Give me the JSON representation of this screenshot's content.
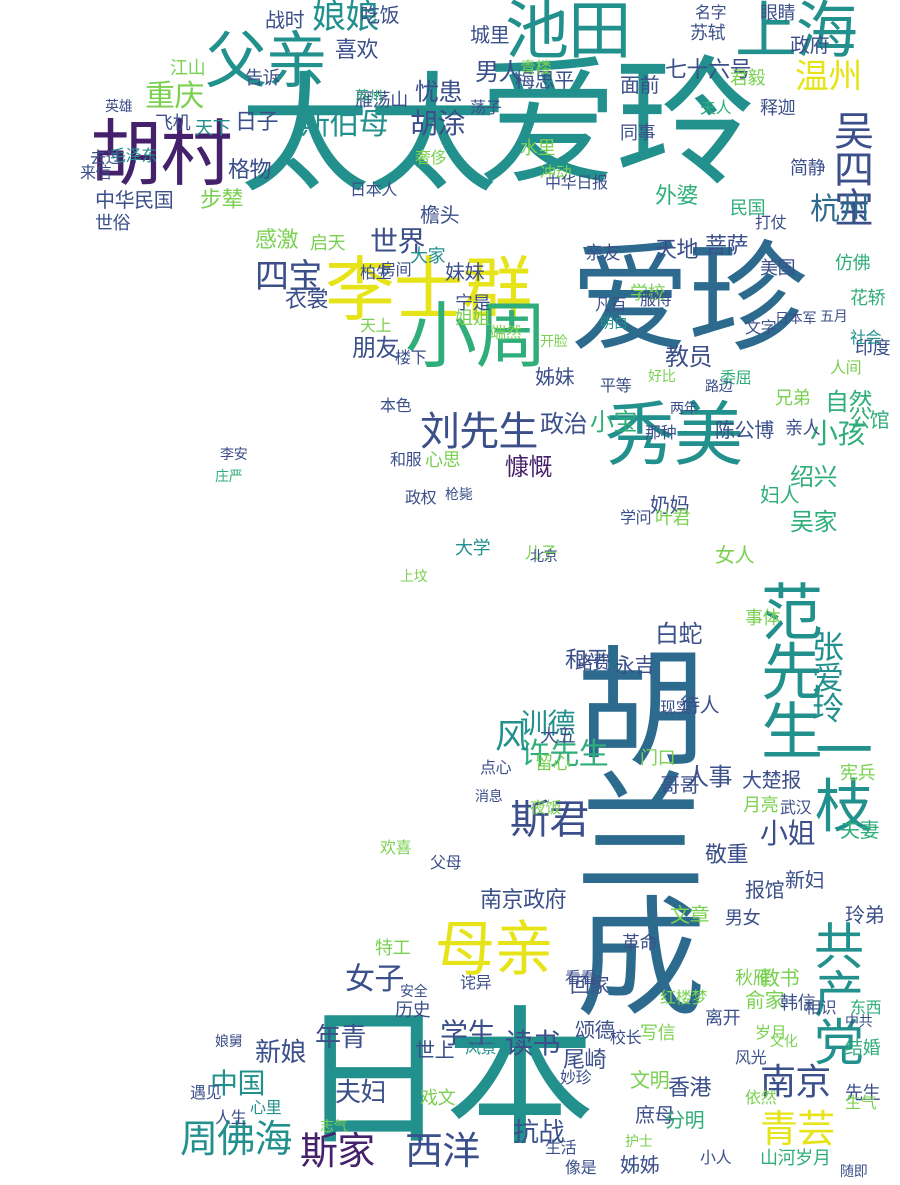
{
  "palette": {
    "dark_purple": "#46216b",
    "indigo": "#3b4f8a",
    "blue": "#2c6b8e",
    "teal": "#22908c",
    "green": "#2fae7b",
    "lime": "#7ad151",
    "yellow": "#e6e419"
  },
  "words": [
    {
      "text": "胡兰成",
      "color": "blue",
      "vertical": true
    },
    {
      "text": "日本",
      "color": "teal",
      "vertical": false
    },
    {
      "text": "太太",
      "color": "teal",
      "vertical": false
    },
    {
      "text": "爱玲",
      "color": "teal",
      "vertical": false
    },
    {
      "text": "爱珍",
      "color": "blue",
      "vertical": false
    },
    {
      "text": "池田",
      "color": "teal",
      "vertical": false
    },
    {
      "text": "上海",
      "color": "teal",
      "vertical": false
    },
    {
      "text": "胡村",
      "color": "dark_purple",
      "vertical": false
    },
    {
      "text": "父亲",
      "color": "teal",
      "vertical": false
    },
    {
      "text": "李士群",
      "color": "yellow",
      "vertical": false
    },
    {
      "text": "小周",
      "color": "green",
      "vertical": false
    },
    {
      "text": "秀美",
      "color": "teal",
      "vertical": false
    },
    {
      "text": "母亲",
      "color": "yellow",
      "vertical": false
    },
    {
      "text": "范先生",
      "color": "teal",
      "vertical": true
    },
    {
      "text": "一枝",
      "color": "teal",
      "vertical": true
    },
    {
      "text": "共产党",
      "color": "teal",
      "vertical": true
    },
    {
      "text": "刘先生",
      "color": "indigo",
      "vertical": false
    },
    {
      "text": "周佛海",
      "color": "teal",
      "vertical": false
    },
    {
      "text": "斯家",
      "color": "dark_purple",
      "vertical": false
    },
    {
      "text": "西洋",
      "color": "indigo",
      "vertical": false
    },
    {
      "text": "南京",
      "color": "indigo",
      "vertical": false
    },
    {
      "text": "青芸",
      "color": "yellow",
      "vertical": false
    },
    {
      "text": "娘娘",
      "color": "teal",
      "vertical": false
    },
    {
      "text": "温州",
      "color": "yellow",
      "vertical": false
    },
    {
      "text": "吴四宝",
      "color": "indigo",
      "vertical": true
    },
    {
      "text": "杭州",
      "color": "blue",
      "vertical": false
    },
    {
      "text": "四宝",
      "color": "indigo",
      "vertical": false
    },
    {
      "text": "斯伯母",
      "color": "teal",
      "vertical": false
    },
    {
      "text": "胡涂",
      "color": "indigo",
      "vertical": false
    },
    {
      "text": "重庆",
      "color": "lime",
      "vertical": false
    },
    {
      "text": "世界",
      "color": "indigo",
      "vertical": false
    },
    {
      "text": "小孩",
      "color": "green",
      "vertical": false
    },
    {
      "text": "小姐",
      "color": "indigo",
      "vertical": false
    },
    {
      "text": "张爱玲",
      "color": "teal",
      "vertical": true
    },
    {
      "text": "训德",
      "color": "teal",
      "vertical": false
    },
    {
      "text": "学生",
      "color": "indigo",
      "vertical": false
    },
    {
      "text": "读书",
      "color": "indigo",
      "vertical": false
    },
    {
      "text": "中国",
      "color": "teal",
      "vertical": false
    },
    {
      "text": "新娘",
      "color": "indigo",
      "vertical": false
    },
    {
      "text": "夫妇",
      "color": "indigo",
      "vertical": false
    },
    {
      "text": "抗战",
      "color": "indigo",
      "vertical": false
    },
    {
      "text": "年青",
      "color": "indigo",
      "vertical": false
    },
    {
      "text": "中华民国",
      "color": "indigo",
      "vertical": false
    },
    {
      "text": "格物",
      "color": "indigo",
      "vertical": false
    },
    {
      "text": "天地",
      "color": "indigo",
      "vertical": false
    },
    {
      "text": "菩萨",
      "color": "indigo",
      "vertical": false
    },
    {
      "text": "自然",
      "color": "green",
      "vertical": false
    },
    {
      "text": "教员",
      "color": "indigo",
      "vertical": false
    },
    {
      "text": "政治",
      "color": "indigo",
      "vertical": false
    },
    {
      "text": "和平",
      "color": "indigo",
      "vertical": false
    },
    {
      "text": "白蛇",
      "color": "indigo",
      "vertical": false
    },
    {
      "text": "香港",
      "color": "indigo",
      "vertical": false
    },
    {
      "text": "尾崎",
      "color": "indigo",
      "vertical": false
    },
    {
      "text": "敬重",
      "color": "indigo",
      "vertical": false
    },
    {
      "text": "报馆",
      "color": "indigo",
      "vertical": false
    },
    {
      "text": "玲弟",
      "color": "indigo",
      "vertical": false
    },
    {
      "text": "文明",
      "color": "lime",
      "vertical": false
    },
    {
      "text": "庶母",
      "color": "indigo",
      "vertical": false
    },
    {
      "text": "颂德",
      "color": "indigo",
      "vertical": false
    },
    {
      "text": "回家",
      "color": "indigo",
      "vertical": false
    },
    {
      "text": "新妇",
      "color": "indigo",
      "vertical": false
    },
    {
      "text": "绍兴",
      "color": "green",
      "vertical": false
    },
    {
      "text": "吴家",
      "color": "green",
      "vertical": false
    },
    {
      "text": "妇人",
      "color": "green",
      "vertical": false
    },
    {
      "text": "南京政府",
      "color": "indigo",
      "vertical": false
    },
    {
      "text": "男人",
      "color": "indigo",
      "vertical": false
    },
    {
      "text": "忧患",
      "color": "indigo",
      "vertical": false
    },
    {
      "text": "喜欢",
      "color": "indigo",
      "vertical": false
    },
    {
      "text": "感激",
      "color": "lime",
      "vertical": false
    },
    {
      "text": "朋友",
      "color": "indigo",
      "vertical": false
    },
    {
      "text": "衣裳",
      "color": "indigo",
      "vertical": false
    },
    {
      "text": "七十六号",
      "color": "indigo",
      "vertical": false
    },
    {
      "text": "慷慨",
      "color": "dark_purple",
      "vertical": false
    },
    {
      "text": "战时",
      "color": "indigo",
      "vertical": false
    },
    {
      "text": "梅思平",
      "color": "indigo",
      "vertical": false
    },
    {
      "text": "城里",
      "color": "indigo",
      "vertical": false
    },
    {
      "text": "政府",
      "color": "indigo",
      "vertical": false
    },
    {
      "text": "苏轼",
      "color": "indigo",
      "vertical": false
    },
    {
      "text": "眼睛",
      "color": "indigo",
      "vertical": false
    },
    {
      "text": "君毅",
      "color": "lime",
      "vertical": false
    },
    {
      "text": "外婆",
      "color": "green",
      "vertical": false
    },
    {
      "text": "亲友",
      "color": "indigo",
      "vertical": false
    },
    {
      "text": "日子",
      "color": "indigo",
      "vertical": false
    },
    {
      "text": "雁荡山",
      "color": "indigo",
      "vertical": false
    },
    {
      "text": "步辇",
      "color": "lime",
      "vertical": false
    },
    {
      "text": "启天",
      "color": "lime",
      "vertical": false
    },
    {
      "text": "房间",
      "color": "indigo",
      "vertical": false
    },
    {
      "text": "妹妹",
      "color": "indigo",
      "vertical": false
    },
    {
      "text": "姊妹",
      "color": "indigo",
      "vertical": false
    },
    {
      "text": "檐头",
      "color": "indigo",
      "vertical": false
    },
    {
      "text": "世俗",
      "color": "indigo",
      "vertical": false
    },
    {
      "text": "本色",
      "color": "indigo",
      "vertical": false
    },
    {
      "text": "心思",
      "color": "lime",
      "vertical": false
    },
    {
      "text": "陈公博",
      "color": "indigo",
      "vertical": false
    },
    {
      "text": "公馆",
      "color": "green",
      "vertical": false
    },
    {
      "text": "奶妈",
      "color": "indigo",
      "vertical": false
    },
    {
      "text": "永吉",
      "color": "indigo",
      "vertical": false
    },
    {
      "text": "路费",
      "color": "indigo",
      "vertical": false
    },
    {
      "text": "待人",
      "color": "indigo",
      "vertical": false
    },
    {
      "text": "人事",
      "color": "indigo",
      "vertical": false
    },
    {
      "text": "大楚报",
      "color": "indigo",
      "vertical": false
    },
    {
      "text": "武汉",
      "color": "indigo",
      "vertical": false
    },
    {
      "text": "月亮",
      "color": "lime",
      "vertical": false
    },
    {
      "text": "夫妻",
      "color": "green",
      "vertical": false
    },
    {
      "text": "文章",
      "color": "lime",
      "vertical": false
    },
    {
      "text": "男女",
      "color": "indigo",
      "vertical": false
    },
    {
      "text": "教书",
      "color": "lime",
      "vertical": false
    },
    {
      "text": "俞家",
      "color": "lime",
      "vertical": false
    },
    {
      "text": "韩信",
      "color": "indigo",
      "vertical": false
    },
    {
      "text": "岁月",
      "color": "lime",
      "vertical": false
    },
    {
      "text": "结婚",
      "color": "green",
      "vertical": false
    },
    {
      "text": "风光",
      "color": "indigo",
      "vertical": false
    },
    {
      "text": "分明",
      "color": "green",
      "vertical": false
    },
    {
      "text": "姊姊",
      "color": "indigo",
      "vertical": false
    },
    {
      "text": "山河岁月",
      "color": "green",
      "vertical": false
    },
    {
      "text": "生活",
      "color": "indigo",
      "vertical": false
    },
    {
      "text": "人生",
      "color": "indigo",
      "vertical": false
    },
    {
      "text": "世上",
      "color": "indigo",
      "vertical": false
    },
    {
      "text": "许先生",
      "color": "green",
      "vertical": false
    },
    {
      "text": "斯君",
      "color": "indigo",
      "vertical": false
    },
    {
      "text": "风",
      "color": "teal",
      "vertical": false
    },
    {
      "text": "女子",
      "color": "indigo",
      "vertical": false
    },
    {
      "text": "特工",
      "color": "lime",
      "vertical": false
    },
    {
      "text": "革命",
      "color": "indigo",
      "vertical": false
    },
    {
      "text": "大五",
      "color": "indigo",
      "vertical": false
    },
    {
      "text": "哥哥",
      "color": "indigo",
      "vertical": false
    },
    {
      "text": "小宝",
      "color": "green",
      "vertical": false
    },
    {
      "text": "女人",
      "color": "lime",
      "vertical": false
    },
    {
      "text": "天下",
      "color": "teal",
      "vertical": false
    },
    {
      "text": "告诉",
      "color": "indigo",
      "vertical": false
    },
    {
      "text": "仿佛",
      "color": "green",
      "vertical": false
    },
    {
      "text": "民国",
      "color": "green",
      "vertical": false
    },
    {
      "text": "亲人",
      "color": "indigo",
      "vertical": false
    },
    {
      "text": "吃饭",
      "color": "indigo",
      "vertical": false
    },
    {
      "text": "江山",
      "color": "lime",
      "vertical": false
    },
    {
      "text": "面前",
      "color": "indigo",
      "vertical": false
    },
    {
      "text": "叶君",
      "color": "lime",
      "vertical": false
    },
    {
      "text": "事体",
      "color": "lime",
      "vertical": false
    },
    {
      "text": "学校",
      "color": "lime",
      "vertical": false
    },
    {
      "text": "委屈",
      "color": "green",
      "vertical": false
    },
    {
      "text": "兄弟",
      "color": "lime",
      "vertical": false
    },
    {
      "text": "政权",
      "color": "indigo",
      "vertical": false
    },
    {
      "text": "和服",
      "color": "indigo",
      "vertical": false
    },
    {
      "text": "印度",
      "color": "indigo",
      "vertical": false
    },
    {
      "text": "夫人",
      "color": "green",
      "vertical": false
    },
    {
      "text": "名字",
      "color": "indigo",
      "vertical": false
    },
    {
      "text": "同事",
      "color": "indigo",
      "vertical": false
    },
    {
      "text": "门口",
      "color": "lime",
      "vertical": false
    },
    {
      "text": "儿子",
      "color": "lime",
      "vertical": false
    },
    {
      "text": "留心",
      "color": "lime",
      "vertical": false
    },
    {
      "text": "秋雁",
      "color": "lime",
      "vertical": false
    },
    {
      "text": "先生",
      "color": "indigo",
      "vertical": false
    },
    {
      "text": "宪兵",
      "color": "lime",
      "vertical": false
    },
    {
      "text": "依然",
      "color": "lime",
      "vertical": false
    },
    {
      "text": "东西",
      "color": "green",
      "vertical": false
    },
    {
      "text": "美国",
      "color": "indigo",
      "vertical": false
    },
    {
      "text": "欢喜",
      "color": "lime",
      "vertical": false
    },
    {
      "text": "大家",
      "color": "teal",
      "vertical": false
    },
    {
      "text": "姐姐",
      "color": "lime",
      "vertical": false
    },
    {
      "text": "天上",
      "color": "lime",
      "vertical": false
    },
    {
      "text": "楼下",
      "color": "indigo",
      "vertical": false
    },
    {
      "text": "宁是",
      "color": "indigo",
      "vertical": false
    },
    {
      "text": "端然",
      "color": "lime",
      "vertical": false
    },
    {
      "text": "柏生",
      "color": "indigo",
      "vertical": false
    },
    {
      "text": "冲动",
      "color": "lime",
      "vertical": false
    },
    {
      "text": "奢侈",
      "color": "lime",
      "vertical": false
    },
    {
      "text": "荡子",
      "color": "indigo",
      "vertical": false
    },
    {
      "text": "水里",
      "color": "lime",
      "vertical": false
    },
    {
      "text": "中华日报",
      "color": "indigo",
      "vertical": false
    },
    {
      "text": "日本人",
      "color": "indigo",
      "vertical": false
    },
    {
      "text": "飞机",
      "color": "indigo",
      "vertical": false
    },
    {
      "text": "毛泽东",
      "color": "teal",
      "vertical": false
    },
    {
      "text": "来信",
      "color": "indigo",
      "vertical": false
    },
    {
      "text": "去过",
      "color": "indigo",
      "vertical": false
    },
    {
      "text": "看看",
      "color": "indigo",
      "vertical": false
    },
    {
      "text": "历史",
      "color": "indigo",
      "vertical": false
    },
    {
      "text": "诧异",
      "color": "indigo",
      "vertical": false
    },
    {
      "text": "戏文",
      "color": "lime",
      "vertical": false
    },
    {
      "text": "写信",
      "color": "lime",
      "vertical": false
    },
    {
      "text": "夜饭",
      "color": "lime",
      "vertical": false
    },
    {
      "text": "点心",
      "color": "indigo",
      "vertical": false
    },
    {
      "text": "妙珍",
      "color": "indigo",
      "vertical": false
    },
    {
      "text": "离开",
      "color": "indigo",
      "vertical": false
    },
    {
      "text": "大学",
      "color": "teal",
      "vertical": false
    },
    {
      "text": "青楼",
      "color": "lime",
      "vertical": false
    },
    {
      "text": "释迦",
      "color": "indigo",
      "vertical": false
    },
    {
      "text": "简静",
      "color": "indigo",
      "vertical": false
    },
    {
      "text": "花轿",
      "color": "green",
      "vertical": false
    },
    {
      "text": "打仗",
      "color": "indigo",
      "vertical": false
    },
    {
      "text": "文字",
      "color": "indigo",
      "vertical": false
    },
    {
      "text": "庄严",
      "color": "green",
      "vertical": false
    },
    {
      "text": "李安",
      "color": "indigo",
      "vertical": false
    },
    {
      "text": "开脸",
      "color": "lime",
      "vertical": false
    },
    {
      "text": "学问",
      "color": "indigo",
      "vertical": false
    },
    {
      "text": "北京",
      "color": "indigo",
      "vertical": false
    },
    {
      "text": "英雄",
      "color": "indigo",
      "vertical": false
    },
    {
      "text": "心里",
      "color": "teal",
      "vertical": false
    },
    {
      "text": "苏州",
      "color": "green",
      "vertical": false
    },
    {
      "text": "平等",
      "color": "indigo",
      "vertical": false
    },
    {
      "text": "那种",
      "color": "indigo",
      "vertical": false
    },
    {
      "text": "好比",
      "color": "lime",
      "vertical": false
    },
    {
      "text": "路边",
      "color": "indigo",
      "vertical": false
    },
    {
      "text": "两年",
      "color": "indigo",
      "vertical": false
    },
    {
      "text": "明白",
      "color": "teal",
      "vertical": false
    },
    {
      "text": "凡百",
      "color": "indigo",
      "vertical": false
    },
    {
      "text": "服侍",
      "color": "indigo",
      "vertical": false
    },
    {
      "text": "日本军",
      "color": "indigo",
      "vertical": false
    },
    {
      "text": "社会",
      "color": "teal",
      "vertical": false
    },
    {
      "text": "五月",
      "color": "indigo",
      "vertical": false
    },
    {
      "text": "人间",
      "color": "lime",
      "vertical": false
    },
    {
      "text": "现实",
      "color": "indigo",
      "vertical": false
    },
    {
      "text": "消息",
      "color": "indigo",
      "vertical": false
    },
    {
      "text": "上坟",
      "color": "lime",
      "vertical": false
    },
    {
      "text": "枪毙",
      "color": "indigo",
      "vertical": false
    },
    {
      "text": "父母",
      "color": "indigo",
      "vertical": false
    },
    {
      "text": "风景",
      "color": "teal",
      "vertical": false
    },
    {
      "text": "校长",
      "color": "indigo",
      "vertical": false
    },
    {
      "text": "相识",
      "color": "indigo",
      "vertical": false
    },
    {
      "text": "红楼梦",
      "color": "lime",
      "vertical": false
    },
    {
      "text": "遇见",
      "color": "indigo",
      "vertical": false
    },
    {
      "text": "随即",
      "color": "indigo",
      "vertical": false
    },
    {
      "text": "像是",
      "color": "indigo",
      "vertical": false
    },
    {
      "text": "护士",
      "color": "lime",
      "vertical": false
    },
    {
      "text": "生气",
      "color": "lime",
      "vertical": false
    },
    {
      "text": "小人",
      "color": "indigo",
      "vertical": false
    },
    {
      "text": "中共",
      "color": "indigo",
      "vertical": false
    },
    {
      "text": "娘舅",
      "color": "indigo",
      "vertical": false
    },
    {
      "text": "志气",
      "color": "lime",
      "vertical": false
    },
    {
      "text": "安全",
      "color": "indigo",
      "vertical": false
    },
    {
      "text": "文化",
      "color": "lime",
      "vertical": false
    }
  ]
}
